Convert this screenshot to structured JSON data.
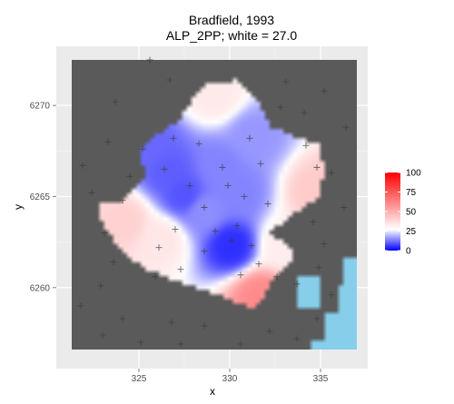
{
  "chart_data": {
    "type": "heatmap",
    "title": "Bradfield, 1993",
    "subtitle": "ALP_2PP; white = 27.0",
    "xlabel": "x",
    "ylabel": "y",
    "x_ticks": [
      325,
      330,
      335
    ],
    "y_ticks": [
      6260,
      6265,
      6270
    ],
    "xlim": [
      321.3,
      337
    ],
    "ylim": [
      6256.6,
      6272.5
    ],
    "grid": true,
    "legend": {
      "placement": "right",
      "ticks": [
        0,
        25,
        50,
        75,
        100
      ],
      "range": [
        0,
        100
      ],
      "midpoint": 27.0,
      "low_color": "#0000ff",
      "mid_color": "#ffffff",
      "high_color": "#ff0000"
    },
    "colors": {
      "panel_background": "#5a5a5a",
      "outer_background": "#ebebeb",
      "water": "#87ceeb",
      "marker": "#3a3a3a"
    },
    "surface_peaks": [
      {
        "x": 330.1,
        "y": 6262.3,
        "value": 5
      },
      {
        "x": 327.5,
        "y": 6265.1,
        "value": 9
      },
      {
        "x": 326.6,
        "y": 6266.4,
        "value": 10
      },
      {
        "x": 325.7,
        "y": 6267.7,
        "value": 11
      },
      {
        "x": 329.4,
        "y": 6266.6,
        "value": 14
      },
      {
        "x": 330.5,
        "y": 6265.2,
        "value": 14
      },
      {
        "x": 328.6,
        "y": 6264.2,
        "value": 15
      },
      {
        "x": 331.3,
        "y": 6268.3,
        "value": 16
      },
      {
        "x": 324.2,
        "y": 6263.6,
        "value": 40
      },
      {
        "x": 331.7,
        "y": 6259.5,
        "value": 60
      },
      {
        "x": 329.2,
        "y": 6270.6,
        "value": 33
      },
      {
        "x": 334.8,
        "y": 6265.2,
        "value": 42
      },
      {
        "x": 326.2,
        "y": 6262.6,
        "value": 34
      },
      {
        "x": 333.0,
        "y": 6262.3,
        "value": 32
      }
    ],
    "polling_places": [
      [
        325.2,
        6267.6
      ],
      [
        326.4,
        6266.5
      ],
      [
        327.0,
        6263.2
      ],
      [
        327.8,
        6265.6
      ],
      [
        328.6,
        6264.4
      ],
      [
        329.6,
        6266.6
      ],
      [
        329.9,
        6265.6
      ],
      [
        330.4,
        6263.4
      ],
      [
        330.1,
        6262.6
      ],
      [
        331.1,
        6268.2
      ],
      [
        332.1,
        6264.6
      ],
      [
        331.6,
        6261.3
      ],
      [
        332.6,
        6260.6
      ],
      [
        333.7,
        6260.2
      ],
      [
        334.6,
        6263.6
      ],
      [
        334.8,
        6266.6
      ],
      [
        334.2,
        6267.8
      ],
      [
        326.1,
        6262.2
      ],
      [
        327.3,
        6261.0
      ],
      [
        328.6,
        6262.0
      ],
      [
        330.8,
        6265.0
      ],
      [
        326.9,
        6268.2
      ],
      [
        328.3,
        6267.9
      ],
      [
        330.6,
        6260.7
      ],
      [
        331.2,
        6262.3
      ],
      [
        325.9,
        6260.6
      ],
      [
        329.2,
        6263.1
      ],
      [
        331.7,
        6266.8
      ],
      [
        321.9,
        6266.7
      ],
      [
        322.4,
        6265.2
      ],
      [
        323.1,
        6263.0
      ],
      [
        323.3,
        6268.0
      ],
      [
        323.7,
        6270.2
      ],
      [
        322.9,
        6260.1
      ],
      [
        321.8,
        6259.0
      ],
      [
        323.0,
        6257.4
      ],
      [
        324.1,
        6258.3
      ],
      [
        325.1,
        6257.0
      ],
      [
        326.8,
        6258.1
      ],
      [
        327.3,
        6256.9
      ],
      [
        328.6,
        6257.9
      ],
      [
        330.6,
        6256.9
      ],
      [
        332.2,
        6257.6
      ],
      [
        333.7,
        6257.2
      ],
      [
        334.8,
        6258.3
      ],
      [
        335.6,
        6259.6
      ],
      [
        335.2,
        6262.4
      ],
      [
        336.3,
        6264.4
      ],
      [
        335.6,
        6266.3
      ],
      [
        336.4,
        6268.8
      ],
      [
        335.2,
        6270.8
      ],
      [
        333.1,
        6271.3
      ],
      [
        334.1,
        6269.6
      ],
      [
        332.8,
        6269.9
      ],
      [
        324.1,
        6264.8
      ],
      [
        325.6,
        6272.5
      ],
      [
        326.7,
        6271.4
      ],
      [
        324.5,
        6266.1
      ],
      [
        323.6,
        6261.4
      ],
      [
        334.9,
        6261.1
      ]
    ]
  }
}
